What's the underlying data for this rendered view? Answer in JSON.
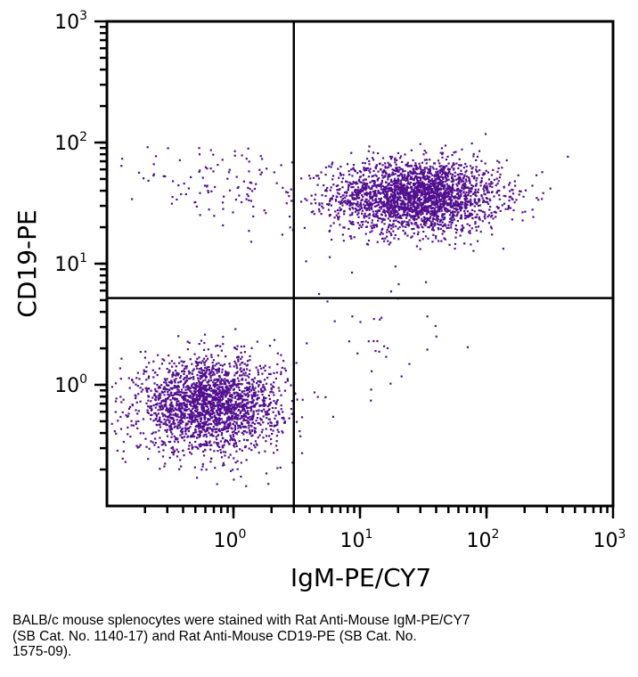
{
  "chart_data": {
    "type": "scatter",
    "title": "",
    "xlabel": "IgM-PE/CY7",
    "ylabel": "CD19-PE",
    "xscale": "log",
    "yscale": "log",
    "xlim": [
      0.1,
      1000
    ],
    "ylim": [
      0.1,
      1000
    ],
    "grid": false,
    "x_ticks": [
      {
        "base": "10",
        "exp": "0",
        "value": 1
      },
      {
        "base": "10",
        "exp": "1",
        "value": 10
      },
      {
        "base": "10",
        "exp": "2",
        "value": 100
      },
      {
        "base": "10",
        "exp": "3",
        "value": 1000
      }
    ],
    "y_ticks": [
      {
        "base": "10",
        "exp": "0",
        "value": 1
      },
      {
        "base": "10",
        "exp": "1",
        "value": 10
      },
      {
        "base": "10",
        "exp": "2",
        "value": 100
      },
      {
        "base": "10",
        "exp": "3",
        "value": 1000
      }
    ],
    "quadrant_gates": {
      "x": 3.0,
      "y": 5.2
    },
    "point_color": "#520f8f",
    "series": [
      {
        "name": "CD19+ IgM+ cluster",
        "n": 2600,
        "center_x": 28,
        "center_y": 36,
        "log_sd_x": 0.33,
        "log_sd_y": 0.15
      },
      {
        "name": "CD19- IgM- cluster",
        "n": 2300,
        "center_x": 0.65,
        "center_y": 0.68,
        "log_sd_x": 0.28,
        "log_sd_y": 0.19
      },
      {
        "name": "CD19+ IgM- scatter",
        "n": 110,
        "center_x": 0.9,
        "center_y": 45,
        "log_sd_x": 0.35,
        "log_sd_y": 0.2
      },
      {
        "name": "CD19- IgM+ scatter",
        "n": 40,
        "center_x": 12,
        "center_y": 2.5,
        "log_sd_x": 0.35,
        "log_sd_y": 0.35
      }
    ]
  },
  "caption": {
    "line1": "BALB/c mouse splenocytes were stained with Rat Anti-Mouse IgM-PE/CY7",
    "line2": "(SB Cat. No. 1140-17) and Rat Anti-Mouse CD19-PE (SB Cat. No.",
    "line3": "1575-09)."
  }
}
